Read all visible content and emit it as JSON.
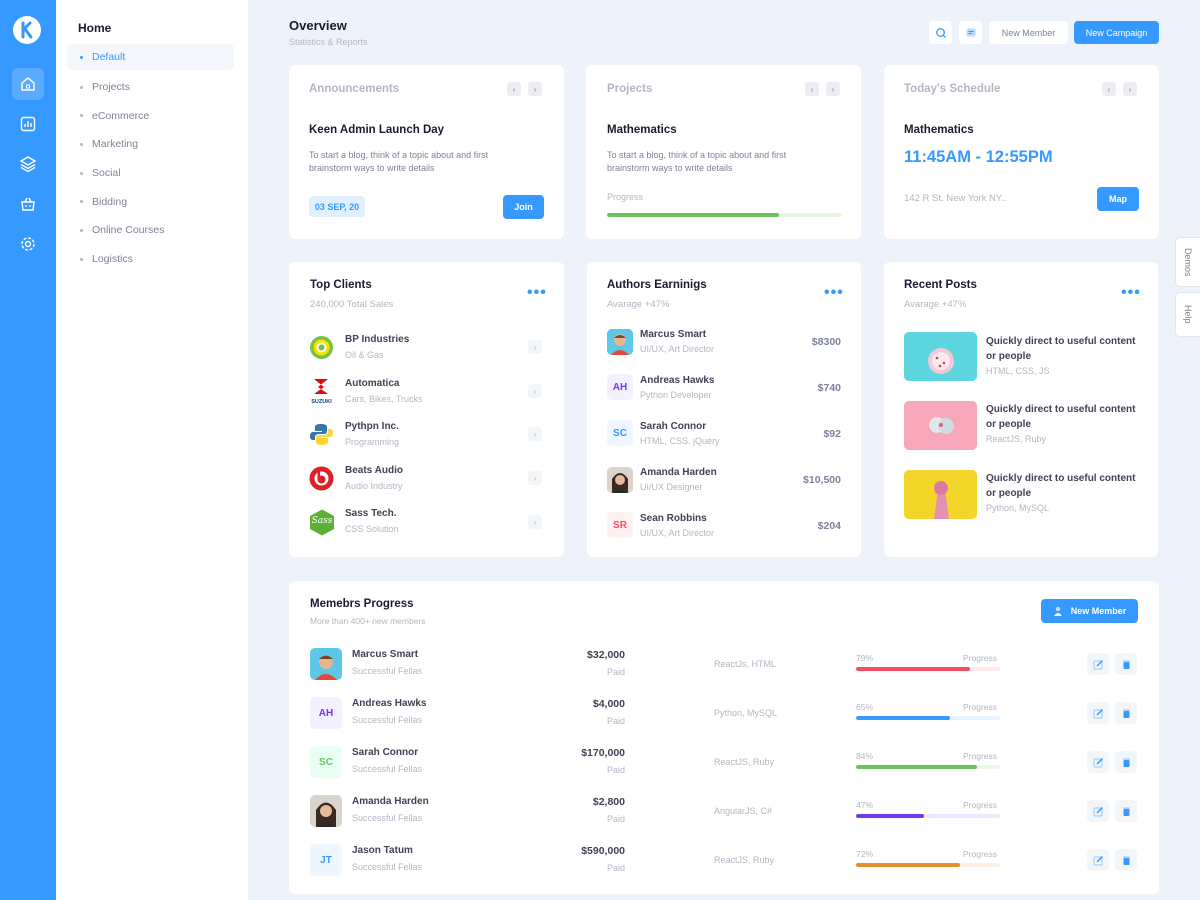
{
  "colors": {
    "primary": "#3699ff",
    "danger": "#f64e60",
    "success": "#6bc25d",
    "purple": "#7337ee",
    "warning": "#e68f2d"
  },
  "rail": {
    "icons": [
      "logo-icon",
      "home-icon",
      "chart-icon",
      "layers-icon",
      "basket-icon",
      "gear-icon"
    ]
  },
  "sidebar": {
    "section": "Home",
    "items": [
      {
        "label": "Default",
        "active": true
      },
      {
        "label": "Projects"
      },
      {
        "label": "eCommerce"
      },
      {
        "label": "Marketing"
      },
      {
        "label": "Social"
      },
      {
        "label": "Bidding"
      },
      {
        "label": "Online Courses"
      },
      {
        "label": "Logistics"
      }
    ]
  },
  "header": {
    "title": "Overview",
    "subtitle": "Statistics & Reports",
    "new_member": "New Member",
    "new_campaign": "New Campaign"
  },
  "announcements": {
    "heading": "Announcements",
    "title": "Keen Admin Launch Day",
    "text": "To start a blog, think of a topic about and first brainstorm ways to write details",
    "date": "03 SEP, 20",
    "button": "Join"
  },
  "projects": {
    "heading": "Projects",
    "title": "Mathematics",
    "text": "To start a blog, think of a topic about and first brainstorm ways to write details",
    "progress_label": "Progress",
    "progress": 0.73
  },
  "schedule": {
    "heading": "Today's Schedule",
    "title": "Mathematics",
    "time": "11:45AM - 12:55PM",
    "address": "142 R St. New York NY..",
    "button": "Map"
  },
  "top_clients": {
    "title": "Top Clients",
    "subtitle": "240,000 Total Sales",
    "items": [
      {
        "name": "BP Industries",
        "sub": "Oil & Gas",
        "logo": "bp-logo-icon"
      },
      {
        "name": "Automatica",
        "sub": "Cars, Bikes, Trucks",
        "logo": "suzuki-logo-icon",
        "logo_text": "SUZUKI"
      },
      {
        "name": "Pythpn Inc.",
        "sub": "Programming",
        "logo": "python-logo-icon"
      },
      {
        "name": "Beats Audio",
        "sub": "Audio Industry",
        "logo": "beats-logo-icon"
      },
      {
        "name": "Sass Tech.",
        "sub": "CSS Solution",
        "logo": "sass-logo-icon",
        "logo_text": "Sass"
      }
    ]
  },
  "authors": {
    "title": "Authors Earninigs",
    "subtitle": "Avarage +47%",
    "items": [
      {
        "name": "Marcus Smart",
        "role": "UI/UX, Art Director",
        "amount": "$8300"
      },
      {
        "name": "Andreas Hawks",
        "role": "Python Developer",
        "amount": "$740",
        "initials": "AH"
      },
      {
        "name": "Sarah Connor",
        "role": "HTML, CSS. jQuery",
        "amount": "$92",
        "initials": "SC"
      },
      {
        "name": "Amanda Harden",
        "role": "UI/UX Designer",
        "amount": "$10,500"
      },
      {
        "name": "Sean Robbins",
        "role": "UI/UX, Art Director",
        "amount": "$204",
        "initials": "SR"
      }
    ]
  },
  "recent_posts": {
    "title": "Recent Posts",
    "subtitle": "Avarage +47%",
    "items": [
      {
        "title": "Quickly direct to useful content or people",
        "tags": "HTML, CSS, JS"
      },
      {
        "title": "Quickly direct to useful content or people",
        "tags": "ReactJS, Ruby"
      },
      {
        "title": "Quickly direct to useful content or people",
        "tags": "Python, MySQL"
      }
    ]
  },
  "members": {
    "title": "Memebrs Progress",
    "subtitle": "More than 400+ new members",
    "button": "New Member",
    "rows": [
      {
        "name": "Marcus Smart",
        "sub": "Successful Fellas",
        "amount": "$32,000",
        "paid": "Paid",
        "tech": "ReactJs, HTML",
        "pct": "79%",
        "value": 0.79,
        "color": "#f64e60",
        "progress_label": "Progress"
      },
      {
        "name": "Andreas Hawks",
        "sub": "Successful Fellas",
        "amount": "$4,000",
        "paid": "Paid",
        "tech": "Python, MySQL",
        "pct": "65%",
        "value": 0.65,
        "color": "#3699ff",
        "initials": "AH",
        "progress_label": "Progress"
      },
      {
        "name": "Sarah Connor",
        "sub": "Successful Fellas",
        "amount": "$170,000",
        "paid": "Paid",
        "tech": "ReactJS, Ruby",
        "pct": "84%",
        "value": 0.84,
        "color": "#6bc25d",
        "initials": "SC",
        "progress_label": "Progress"
      },
      {
        "name": "Amanda Harden",
        "sub": "Successful Fellas",
        "amount": "$2,800",
        "paid": "Paid",
        "tech": "AngularJS, C#",
        "pct": "47%",
        "value": 0.47,
        "color": "#7337ee",
        "progress_label": "Progress"
      },
      {
        "name": "Jason Tatum",
        "sub": "Successful Fellas",
        "amount": "$590,000",
        "paid": "Paid",
        "tech": "ReactJS, Ruby",
        "pct": "72%",
        "value": 0.72,
        "color": "#e68f2d",
        "initials": "JT",
        "progress_label": "Progress"
      }
    ]
  },
  "side_tabs": {
    "demos": "Demos",
    "help": "Help"
  }
}
